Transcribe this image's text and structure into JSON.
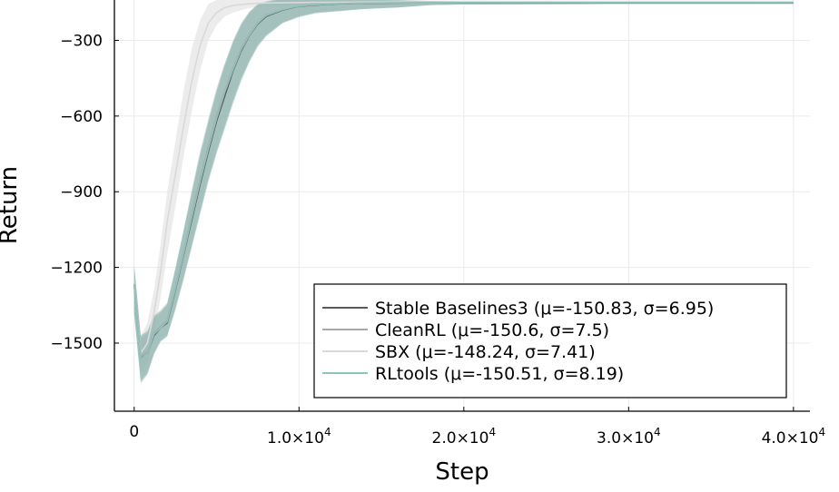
{
  "chart_data": {
    "type": "line",
    "xlabel": "Step",
    "ylabel": "Return",
    "xlim": [
      -1200,
      41000
    ],
    "ylim": [
      -1770,
      -140
    ],
    "grid": true,
    "legend_position": "bottom-right",
    "x_ticks": [
      {
        "value": 0,
        "mant": "0",
        "exp": ""
      },
      {
        "value": 10000,
        "mant": "1.0×10",
        "exp": "4"
      },
      {
        "value": 20000,
        "mant": "2.0×10",
        "exp": "4"
      },
      {
        "value": 30000,
        "mant": "3.0×10",
        "exp": "4"
      },
      {
        "value": 40000,
        "mant": "4.0×10",
        "exp": "4"
      }
    ],
    "y_ticks": [
      {
        "value": -300,
        "label": "−300"
      },
      {
        "value": -600,
        "label": "−600"
      },
      {
        "value": -900,
        "label": "−900"
      },
      {
        "value": -1200,
        "label": "−1200"
      },
      {
        "value": -1500,
        "label": "−1500"
      }
    ],
    "x": [
      0,
      400,
      800,
      1200,
      1600,
      2000,
      2500,
      3000,
      3500,
      4000,
      4500,
      5000,
      5500,
      6000,
      6500,
      7000,
      7500,
      8000,
      9000,
      10000,
      11000,
      12000,
      14000,
      16000,
      18000,
      20000,
      25000,
      30000,
      35000,
      40000
    ],
    "series": [
      {
        "name": "Stable Baselines3 (μ=-150.83, σ=6.95)",
        "color": "#5a5a5a",
        "band_color": "#8a8a8a",
        "mean": [
          -1270,
          -1560,
          -1540,
          -1470,
          -1440,
          -1420,
          -1290,
          -1150,
          -1010,
          -870,
          -740,
          -620,
          -520,
          -420,
          -340,
          -280,
          -235,
          -205,
          -180,
          -165,
          -160,
          -156,
          -153,
          -152,
          -151,
          -151,
          -151,
          -151,
          -151,
          -151
        ],
        "lower": [
          -1380,
          -1650,
          -1620,
          -1540,
          -1490,
          -1470,
          -1360,
          -1240,
          -1110,
          -980,
          -850,
          -740,
          -640,
          -540,
          -450,
          -380,
          -320,
          -280,
          -230,
          -205,
          -190,
          -185,
          -175,
          -170,
          -160,
          -158,
          -157,
          -156,
          -156,
          -155
        ],
        "upper": [
          -1200,
          -1480,
          -1460,
          -1400,
          -1380,
          -1350,
          -1210,
          -1060,
          -910,
          -760,
          -630,
          -510,
          -400,
          -310,
          -240,
          -190,
          -160,
          -150,
          -135,
          -135,
          -135,
          -138,
          -140,
          -142,
          -145,
          -146,
          -146,
          -147,
          -147,
          -147
        ]
      },
      {
        "name": "CleanRL (μ=-150.6, σ=7.5)",
        "color": "#a8a8a8",
        "band_color": "#b8b8b8",
        "mean": [
          -1265,
          -1555,
          -1535,
          -1460,
          -1435,
          -1410,
          -1280,
          -1140,
          -990,
          -850,
          -720,
          -600,
          -500,
          -410,
          -330,
          -275,
          -230,
          -200,
          -178,
          -164,
          -159,
          -155,
          -152,
          -151,
          -151,
          -150,
          -150,
          -150,
          -150,
          -150
        ],
        "lower": [
          -1370,
          -1640,
          -1610,
          -1530,
          -1480,
          -1460,
          -1350,
          -1230,
          -1090,
          -960,
          -830,
          -720,
          -620,
          -520,
          -440,
          -370,
          -315,
          -275,
          -228,
          -203,
          -188,
          -183,
          -172,
          -168,
          -158,
          -157,
          -156,
          -155,
          -155,
          -155
        ],
        "upper": [
          -1195,
          -1470,
          -1450,
          -1390,
          -1370,
          -1340,
          -1200,
          -1050,
          -890,
          -740,
          -610,
          -490,
          -390,
          -300,
          -230,
          -185,
          -155,
          -145,
          -132,
          -132,
          -133,
          -136,
          -138,
          -140,
          -144,
          -145,
          -145,
          -146,
          -146,
          -146
        ]
      },
      {
        "name": "SBX (μ=-148.24, σ=7.41)",
        "color": "#d9d9d9",
        "band_color": "#e4e4e4",
        "mean": [
          -1260,
          -1540,
          -1500,
          -1380,
          -1220,
          -1020,
          -830,
          -640,
          -460,
          -320,
          -230,
          -190,
          -170,
          -162,
          -158,
          -155,
          -153,
          -152,
          -151,
          -150,
          -149,
          -149,
          -148,
          -148,
          -148,
          -148,
          -148,
          -148,
          -148,
          -148
        ],
        "lower": [
          -1340,
          -1620,
          -1580,
          -1460,
          -1320,
          -1150,
          -960,
          -760,
          -580,
          -420,
          -300,
          -240,
          -205,
          -190,
          -180,
          -172,
          -168,
          -166,
          -162,
          -160,
          -158,
          -157,
          -156,
          -155,
          -155,
          -154,
          -154,
          -154,
          -154,
          -154
        ],
        "upper": [
          -1190,
          -1470,
          -1420,
          -1290,
          -1110,
          -900,
          -700,
          -500,
          -330,
          -220,
          -155,
          -140,
          -135,
          -135,
          -135,
          -136,
          -137,
          -138,
          -139,
          -140,
          -141,
          -141,
          -142,
          -142,
          -142,
          -142,
          -142,
          -142,
          -142,
          -142
        ]
      },
      {
        "name": "RLtools (μ=-150.51, σ=8.19)",
        "color": "#8fc3bc",
        "band_color": "#8fc3bc",
        "mean": [
          -1268,
          -1565,
          -1540,
          -1465,
          -1440,
          -1415,
          -1285,
          -1145,
          -1000,
          -860,
          -730,
          -610,
          -505,
          -415,
          -335,
          -278,
          -232,
          -202,
          -178,
          -163,
          -158,
          -155,
          -152,
          -151,
          -151,
          -150,
          -150,
          -150,
          -150,
          -150
        ],
        "lower": [
          -1390,
          -1660,
          -1625,
          -1545,
          -1495,
          -1475,
          -1370,
          -1250,
          -1120,
          -990,
          -860,
          -750,
          -650,
          -550,
          -460,
          -385,
          -325,
          -285,
          -232,
          -208,
          -193,
          -187,
          -176,
          -170,
          -160,
          -158,
          -157,
          -156,
          -156,
          -156
        ],
        "upper": [
          -1190,
          -1470,
          -1455,
          -1395,
          -1375,
          -1345,
          -1205,
          -1055,
          -900,
          -750,
          -620,
          -500,
          -395,
          -305,
          -235,
          -188,
          -158,
          -148,
          -133,
          -133,
          -134,
          -137,
          -139,
          -141,
          -144,
          -145,
          -145,
          -146,
          -146,
          -146
        ]
      }
    ]
  }
}
